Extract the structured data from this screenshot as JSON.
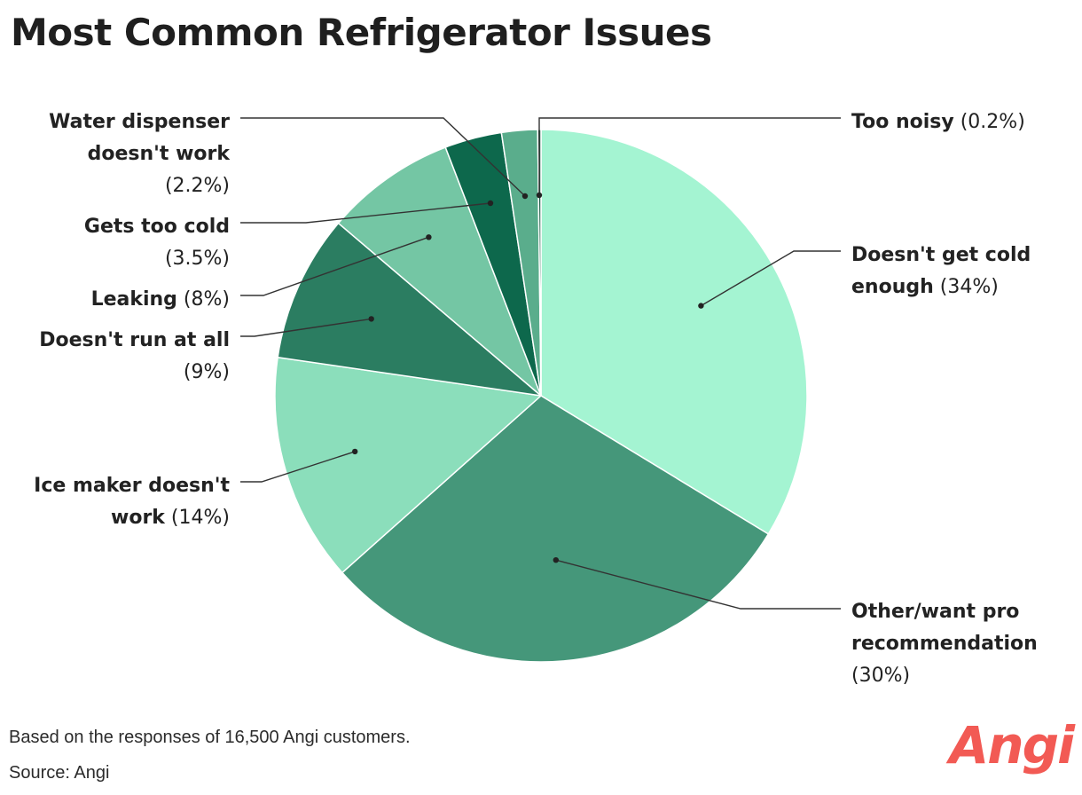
{
  "chart_data": {
    "type": "pie",
    "title": "Most Common Refrigerator Issues",
    "slices": [
      {
        "label": "Doesn't get cold enough",
        "value": 34,
        "display": "(34%)",
        "color": "#a4f4d2",
        "lines": [
          "Doesn't get cold",
          "enough"
        ]
      },
      {
        "label": "Other/want pro recommendation",
        "value": 30,
        "display": "(30%)",
        "color": "#45977a",
        "lines": [
          "Other/want pro",
          "recommendation"
        ]
      },
      {
        "label": "Ice maker doesn't work",
        "value": 14,
        "display": "(14%)",
        "color": "#8bdebb",
        "lines": [
          "Ice maker doesn't",
          "work"
        ]
      },
      {
        "label": "Doesn't run at all",
        "value": 9,
        "display": "(9%)",
        "color": "#2b7d61",
        "lines": [
          "Doesn't run at all"
        ]
      },
      {
        "label": "Leaking",
        "value": 8,
        "display": "(8%)",
        "color": "#74c6a4",
        "lines": [
          "Leaking"
        ]
      },
      {
        "label": "Gets too cold",
        "value": 3.5,
        "display": "(3.5%)",
        "color": "#0d684c",
        "lines": [
          "Gets too cold"
        ]
      },
      {
        "label": "Water dispenser doesn't work",
        "value": 2.2,
        "display": "(2.2%)",
        "color": "#5aad8c",
        "lines": [
          "Water dispenser",
          "doesn't work"
        ]
      },
      {
        "label": "Too noisy",
        "value": 0.2,
        "display": "(0.2%)",
        "color": "#1c5a45",
        "lines": [
          "Too noisy"
        ]
      }
    ]
  },
  "footer": {
    "note": "Based on the responses of 16,500 Angi customers.",
    "source": "Source: Angi"
  },
  "brand": {
    "logo_text": "Angi",
    "color": "#f25a54"
  }
}
